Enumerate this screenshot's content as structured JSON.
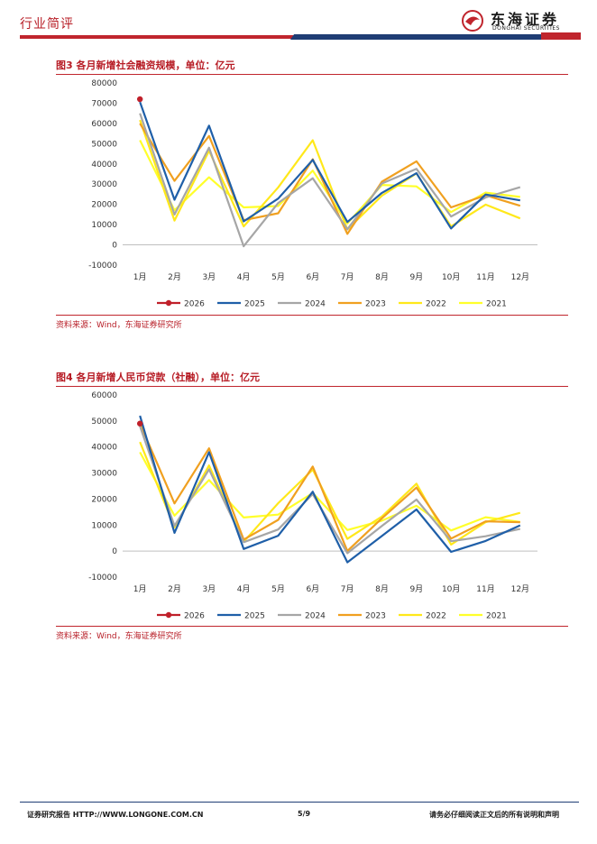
{
  "header": {
    "section": "行业简评",
    "logo_cn": "东海证券",
    "logo_en": "DONGHAI SECURITIES"
  },
  "figures": [
    {
      "title": "图3  各月新增社会融资规模，单位：亿元",
      "source": "资料来源：Wind，东海证券研究所"
    },
    {
      "title": "图4  各月新增人民币贷款（社融），单位：亿元",
      "source": "资料来源：Wind，东海证券研究所"
    }
  ],
  "footer": {
    "left": "证券研究报告    HTTP://WWW.LONGONE.COM.CN",
    "page": "5/9",
    "right": "请务必仔细阅读正文后的所有说明和声明"
  },
  "chart_data": [
    {
      "type": "line",
      "title": "各月新增社会融资规模，单位：亿元",
      "categories": [
        "1月",
        "2月",
        "3月",
        "4月",
        "5月",
        "6月",
        "7月",
        "8月",
        "9月",
        "10月",
        "11月",
        "12月"
      ],
      "ylim": [
        -10000,
        80000
      ],
      "yticks": [
        -10000,
        0,
        10000,
        20000,
        30000,
        40000,
        50000,
        60000,
        70000,
        80000
      ],
      "grid": false,
      "legend": "bottom",
      "series": [
        {
          "name": "2026",
          "color": "#c0202a",
          "marker": true,
          "values": [
            72000,
            null,
            null,
            null,
            null,
            null,
            null,
            null,
            null,
            null,
            null,
            null
          ]
        },
        {
          "name": "2025",
          "color": "#1f5fa8",
          "values": [
            70600,
            22300,
            58900,
            11600,
            22900,
            42000,
            11300,
            25700,
            35400,
            8100,
            24900,
            22000
          ]
        },
        {
          "name": "2024",
          "color": "#a6a6a6",
          "values": [
            65000,
            15000,
            48000,
            -700,
            20700,
            32900,
            7700,
            30300,
            37600,
            14000,
            23400,
            28500
          ]
        },
        {
          "name": "2023",
          "color": "#f0a020",
          "values": [
            60000,
            31600,
            53800,
            12200,
            15600,
            42300,
            5400,
            31200,
            41300,
            18500,
            24500,
            19300
          ]
        },
        {
          "name": "2022",
          "color": "#ffe81a",
          "values": [
            61700,
            12000,
            46500,
            9100,
            28400,
            51700,
            7600,
            24300,
            35300,
            9100,
            19900,
            13100
          ]
        },
        {
          "name": "2021",
          "color": "#ffff2a",
          "values": [
            51700,
            17100,
            33400,
            18500,
            19200,
            36700,
            10600,
            29600,
            28900,
            16200,
            25800,
            23700
          ]
        }
      ]
    },
    {
      "type": "line",
      "title": "各月新增人民币贷款（社融），单位：亿元",
      "categories": [
        "1月",
        "2月",
        "3月",
        "4月",
        "5月",
        "6月",
        "7月",
        "8月",
        "9月",
        "10月",
        "11月",
        "12月"
      ],
      "ylim": [
        -10000,
        60000
      ],
      "yticks": [
        -10000,
        0,
        10000,
        20000,
        30000,
        40000,
        50000,
        60000
      ],
      "grid": false,
      "legend": "bottom",
      "series": [
        {
          "name": "2026",
          "color": "#c0202a",
          "marker": true,
          "values": [
            49000,
            null,
            null,
            null,
            null,
            null,
            null,
            null,
            null,
            null,
            null,
            null
          ]
        },
        {
          "name": "2025",
          "color": "#1f5fa8",
          "values": [
            52000,
            7000,
            38000,
            800,
            5900,
            22800,
            -4300,
            5800,
            16000,
            -300,
            3900,
            9900
          ]
        },
        {
          "name": "2024",
          "color": "#a6a6a6",
          "values": [
            48000,
            9700,
            31400,
            3400,
            8300,
            21900,
            -800,
            9700,
            19800,
            3800,
            5700,
            8500
          ]
        },
        {
          "name": "2023",
          "color": "#f0a020",
          "values": [
            49000,
            18300,
            39500,
            4400,
            12000,
            32500,
            0,
            12600,
            24400,
            4800,
            11400,
            11100
          ]
        },
        {
          "name": "2022",
          "color": "#ffe81a",
          "values": [
            41900,
            9100,
            32900,
            3600,
            18400,
            31300,
            4700,
            13300,
            25900,
            2500,
            11100,
            14700
          ]
        },
        {
          "name": "2021",
          "color": "#ffff2a",
          "values": [
            38000,
            13600,
            27300,
            12900,
            14000,
            22300,
            8100,
            11700,
            17400,
            7900,
            13000,
            11200
          ]
        }
      ]
    }
  ]
}
